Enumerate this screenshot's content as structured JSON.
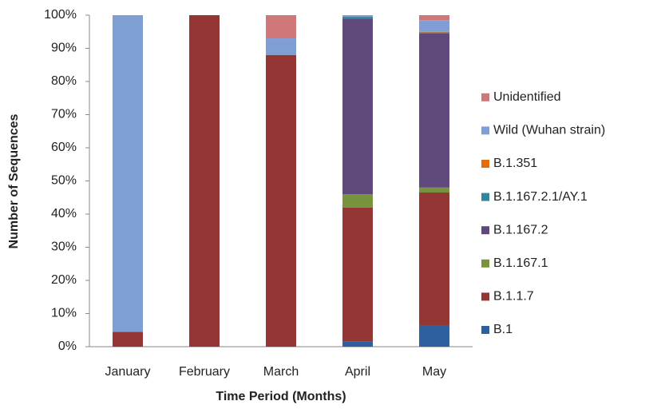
{
  "chart_data": {
    "type": "stacked_bar",
    "x_label": "Time Period (Months)",
    "y_label": "Number of Sequences",
    "categories": [
      "January",
      "February",
      "March",
      "April",
      "May"
    ],
    "series": [
      {
        "name": "B.1",
        "color": "#2e5f9e",
        "values": [
          0,
          0,
          0,
          1.5,
          6.5
        ]
      },
      {
        "name": "B.1.1.7",
        "color": "#943634",
        "values": [
          4.5,
          100,
          88,
          40.5,
          40
        ]
      },
      {
        "name": "B.1.167.1",
        "color": "#77933c",
        "values": [
          0,
          0,
          0,
          4,
          1.5
        ]
      },
      {
        "name": "B.1.167.2",
        "color": "#5f497a",
        "values": [
          0,
          0,
          0,
          53,
          46.5
        ]
      },
      {
        "name": "B.1.167.2.1/AY.1",
        "color": "#31859c",
        "values": [
          0,
          0,
          0,
          0.5,
          0.3
        ]
      },
      {
        "name": "B.1.351",
        "color": "#e46c0a",
        "values": [
          0,
          0,
          0,
          0,
          0.2
        ]
      },
      {
        "name": "Wild (Wuhan strain)",
        "color": "#7f9fd4",
        "values": [
          95.5,
          0,
          5,
          0.5,
          3.5
        ]
      },
      {
        "name": "Unidentified",
        "color": "#d0777a",
        "values": [
          0,
          0,
          7,
          0,
          1.5
        ]
      }
    ],
    "ylim": [
      0,
      100
    ],
    "yticks": [
      {
        "value": 0,
        "label": "0%"
      },
      {
        "value": 10,
        "label": "10%"
      },
      {
        "value": 20,
        "label": "20%"
      },
      {
        "value": 30,
        "label": "30%"
      },
      {
        "value": 40,
        "label": "40%"
      },
      {
        "value": 50,
        "label": "50%"
      },
      {
        "value": 60,
        "label": "60%"
      },
      {
        "value": 70,
        "label": "70%"
      },
      {
        "value": 80,
        "label": "80%"
      },
      {
        "value": 90,
        "label": "90%"
      },
      {
        "value": 100,
        "label": "100%"
      }
    ],
    "legend": "right"
  }
}
